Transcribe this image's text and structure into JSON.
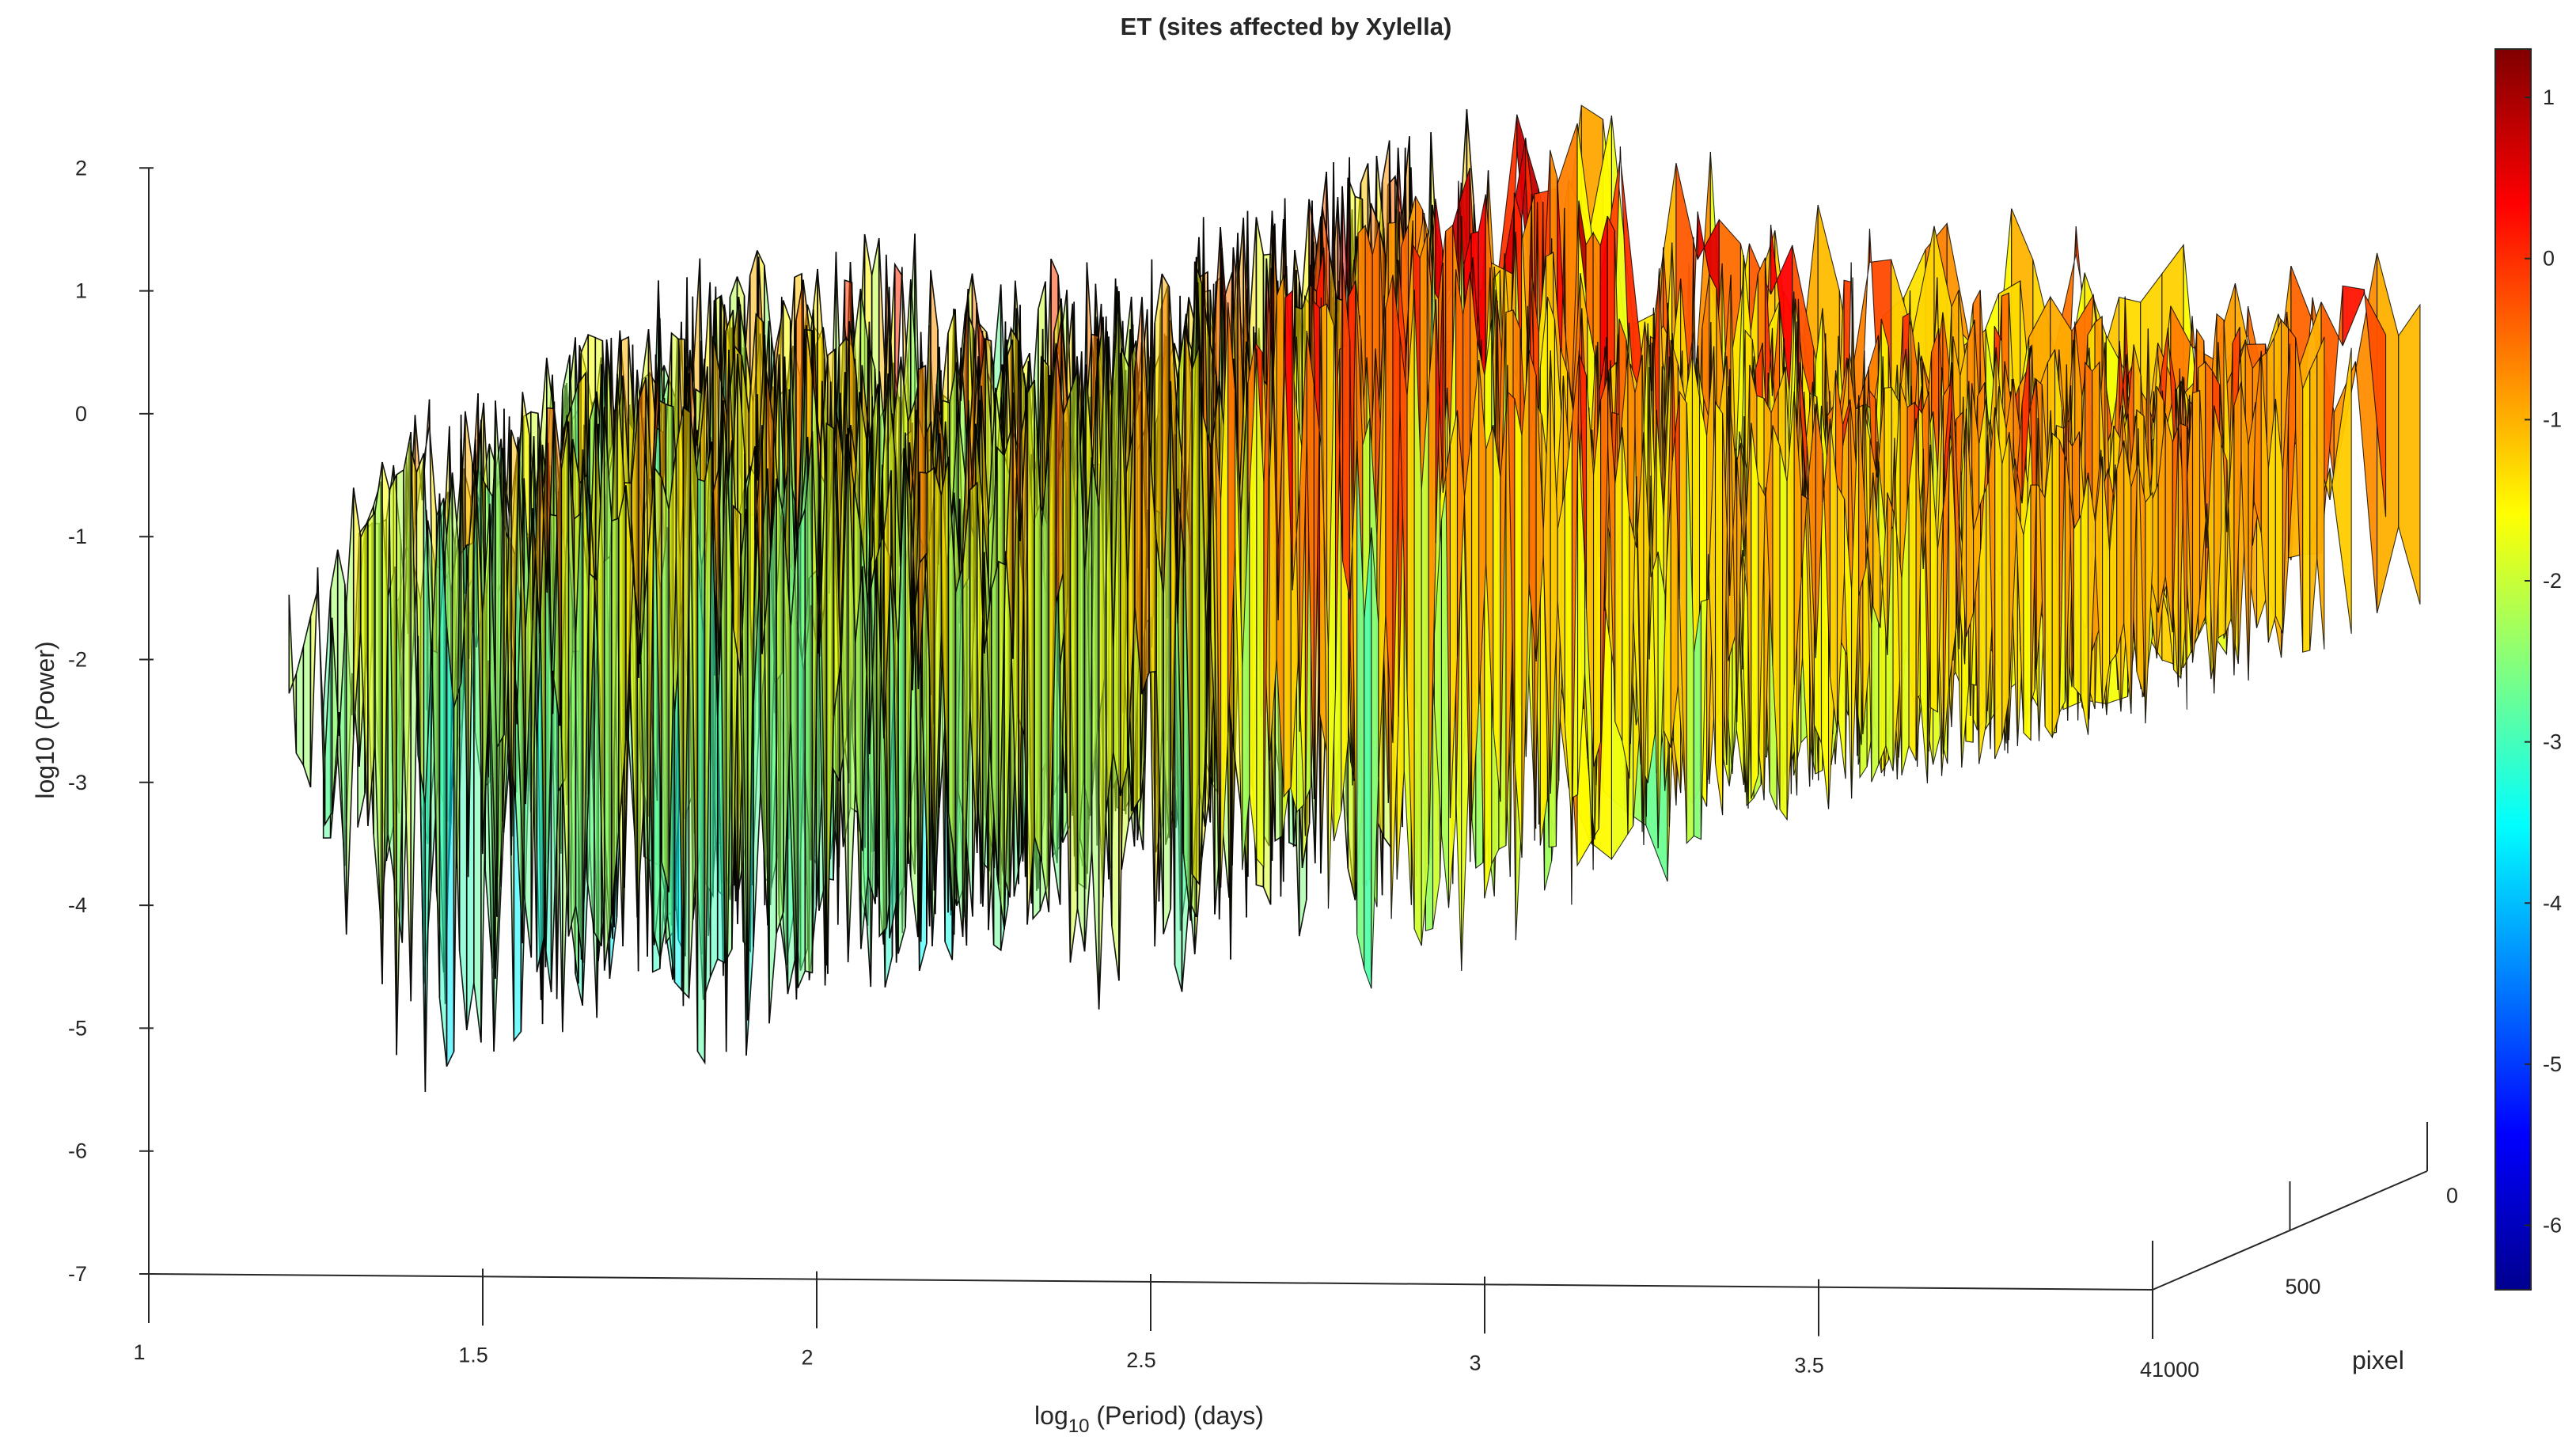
{
  "chart_data": {
    "type": "surface",
    "title": "ET (sites affected by Xylella)",
    "xlabel": {
      "base": "log",
      "subscript": "10",
      "rest": " (Period) (days)"
    },
    "ylabel": "pixel",
    "zlabel": "log10 (Power)",
    "xlim": [
      1,
      4
    ],
    "ylim": [
      0,
      1000
    ],
    "zlim": [
      -7,
      2
    ],
    "x_ticks": [
      {
        "value": 1,
        "label": "1"
      },
      {
        "value": 1.5,
        "label": "1.5"
      },
      {
        "value": 2,
        "label": "2"
      },
      {
        "value": 2.5,
        "label": "2.5"
      },
      {
        "value": 3,
        "label": "3"
      },
      {
        "value": 3.5,
        "label": "3.5"
      },
      {
        "value": 4,
        "label": "4"
      }
    ],
    "y_ticks": [
      {
        "value": 0,
        "label": "0"
      },
      {
        "value": 500,
        "label": "500"
      },
      {
        "value": 1000,
        "label": "1000"
      }
    ],
    "z_ticks": [
      {
        "value": 2,
        "label": "2"
      },
      {
        "value": 1,
        "label": "1"
      },
      {
        "value": 0,
        "label": "0"
      },
      {
        "value": -1,
        "label": "-1"
      },
      {
        "value": -2,
        "label": "-2"
      },
      {
        "value": -3,
        "label": "-3"
      },
      {
        "value": -4,
        "label": "-4"
      },
      {
        "value": -5,
        "label": "-5"
      },
      {
        "value": -6,
        "label": "-6"
      },
      {
        "value": -7,
        "label": "-7"
      }
    ],
    "colorbar": {
      "colormap": "jet",
      "range": [
        -6.4,
        1.3
      ],
      "ticks": [
        {
          "value": 1,
          "label": "1"
        },
        {
          "value": 0,
          "label": "0"
        },
        {
          "value": -1,
          "label": "-1"
        },
        {
          "value": -2,
          "label": "-2"
        },
        {
          "value": -3,
          "label": "-3"
        },
        {
          "value": -4,
          "label": "-4"
        },
        {
          "value": -5,
          "label": "-5"
        },
        {
          "value": -6,
          "label": "-6"
        }
      ]
    },
    "surface_x_range": [
      1.21,
      4.0
    ],
    "power_envelope": [
      {
        "x": 1.22,
        "top": -0.6,
        "bottom": -3.6
      },
      {
        "x": 1.3,
        "top": -0.1,
        "bottom": -4.3
      },
      {
        "x": 1.4,
        "top": 0.3,
        "bottom": -5.6
      },
      {
        "x": 1.55,
        "top": 0.5,
        "bottom": -4.6
      },
      {
        "x": 1.7,
        "top": 0.6,
        "bottom": -4.5
      },
      {
        "x": 1.85,
        "top": 0.5,
        "bottom": -5.4
      },
      {
        "x": 2.0,
        "top": 0.4,
        "bottom": -4.5
      },
      {
        "x": 2.15,
        "top": 0.3,
        "bottom": -4.4
      },
      {
        "x": 2.27,
        "top": 0.3,
        "bottom": -4.2
      },
      {
        "x": 2.3,
        "top": 1.0,
        "bottom": -4.0
      },
      {
        "x": 2.45,
        "top": 1.4,
        "bottom": -5.0
      },
      {
        "x": 2.6,
        "top": 1.7,
        "bottom": -3.8
      },
      {
        "x": 2.72,
        "top": 1.6,
        "bottom": -3.5
      },
      {
        "x": 2.85,
        "top": 1.85,
        "bottom": -4.8
      },
      {
        "x": 3.0,
        "top": 1.1,
        "bottom": -3.6
      },
      {
        "x": 3.2,
        "top": 0.9,
        "bottom": -3.5
      },
      {
        "x": 3.4,
        "top": 0.8,
        "bottom": -3.3
      },
      {
        "x": 3.6,
        "top": 0.6,
        "bottom": -3.1
      },
      {
        "x": 3.8,
        "top": 0.6,
        "bottom": -2.6
      },
      {
        "x": 4.0,
        "top": 0.4,
        "bottom": -2.4
      }
    ]
  }
}
